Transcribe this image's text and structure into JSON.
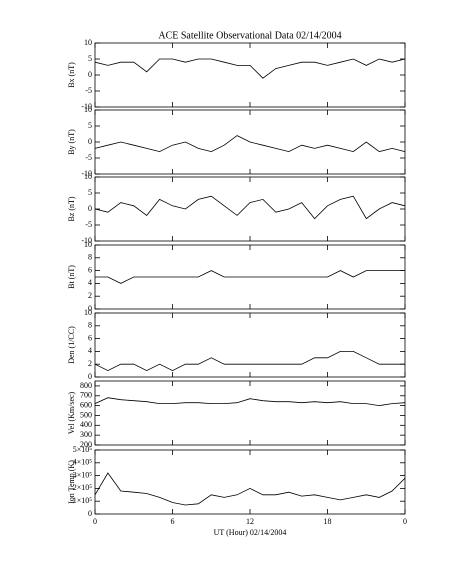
{
  "title": "ACE Satellite Observational Data   02/14/2004",
  "chart_data": [
    {
      "type": "line",
      "ylabel": "Bx (nT)",
      "x": [
        0,
        1,
        2,
        3,
        4,
        5,
        6,
        7,
        8,
        9,
        10,
        11,
        12,
        13,
        14,
        15,
        16,
        17,
        18,
        19,
        20,
        21,
        22,
        23,
        24
      ],
      "values": [
        4,
        3,
        4,
        4,
        1,
        5,
        5,
        4,
        5,
        5,
        4,
        3,
        3,
        -1,
        2,
        3,
        4,
        4,
        3,
        4,
        5,
        3,
        5,
        4,
        5
      ],
      "xlim": [
        0,
        24
      ],
      "xticks": [
        0,
        6,
        12,
        18,
        {
          "value": 24,
          "label": "0"
        }
      ],
      "ylim": [
        -10,
        10
      ],
      "yticks": [
        -10,
        -5,
        0,
        5,
        10
      ],
      "color": "#000000"
    },
    {
      "type": "line",
      "ylabel": "By (nT)",
      "x": [
        0,
        1,
        2,
        3,
        4,
        5,
        6,
        7,
        8,
        9,
        10,
        11,
        12,
        13,
        14,
        15,
        16,
        17,
        18,
        19,
        20,
        21,
        22,
        23,
        24
      ],
      "values": [
        -2,
        -1,
        0,
        -1,
        -2,
        -3,
        -1,
        0,
        -2,
        -3,
        -1,
        2,
        0,
        -1,
        -2,
        -3,
        -1,
        -2,
        -1,
        -2,
        -3,
        0,
        -3,
        -2,
        -3
      ],
      "xlim": [
        0,
        24
      ],
      "xticks": [
        0,
        6,
        12,
        18,
        {
          "value": 24,
          "label": "0"
        }
      ],
      "ylim": [
        -10,
        10
      ],
      "yticks": [
        -10,
        -5,
        0,
        5,
        10
      ],
      "color": "#000000"
    },
    {
      "type": "line",
      "ylabel": "Bz (nT)",
      "x": [
        0,
        1,
        2,
        3,
        4,
        5,
        6,
        7,
        8,
        9,
        10,
        11,
        12,
        13,
        14,
        15,
        16,
        17,
        18,
        19,
        20,
        21,
        22,
        23,
        24
      ],
      "values": [
        0,
        -1,
        2,
        1,
        -2,
        3,
        1,
        0,
        3,
        4,
        1,
        -2,
        2,
        3,
        -1,
        0,
        2,
        -3,
        1,
        3,
        4,
        -3,
        0,
        2,
        1
      ],
      "xlim": [
        0,
        24
      ],
      "xticks": [
        0,
        6,
        12,
        18,
        {
          "value": 24,
          "label": "0"
        }
      ],
      "ylim": [
        -10,
        10
      ],
      "yticks": [
        -10,
        -5,
        0,
        5,
        10
      ],
      "color": "#000000"
    },
    {
      "type": "line",
      "ylabel": "Bt (nT)",
      "x": [
        0,
        1,
        2,
        3,
        4,
        5,
        6,
        7,
        8,
        9,
        10,
        11,
        12,
        13,
        14,
        15,
        16,
        17,
        18,
        19,
        20,
        21,
        22,
        23,
        24
      ],
      "values": [
        5,
        5,
        4,
        5,
        5,
        5,
        5,
        5,
        5,
        6,
        5,
        5,
        5,
        5,
        5,
        5,
        5,
        5,
        5,
        6,
        5,
        6,
        6,
        6,
        6
      ],
      "xlim": [
        0,
        24
      ],
      "xticks": [
        0,
        6,
        12,
        18,
        {
          "value": 24,
          "label": "0"
        }
      ],
      "ylim": [
        0,
        10
      ],
      "yticks": [
        0,
        2,
        4,
        6,
        8,
        10
      ],
      "color": "#000000"
    },
    {
      "type": "line",
      "ylabel": "Den (1/CC)",
      "x": [
        0,
        1,
        2,
        3,
        4,
        5,
        6,
        7,
        8,
        9,
        10,
        11,
        12,
        13,
        14,
        15,
        16,
        17,
        18,
        19,
        20,
        21,
        22,
        23,
        24
      ],
      "values": [
        2,
        1,
        2,
        2,
        1,
        2,
        1,
        2,
        2,
        3,
        2,
        2,
        2,
        2,
        2,
        2,
        2,
        3,
        3,
        4,
        4,
        3,
        2,
        2,
        2
      ],
      "xlim": [
        0,
        24
      ],
      "xticks": [
        0,
        6,
        12,
        18,
        {
          "value": 24,
          "label": "0"
        }
      ],
      "ylim": [
        0,
        10
      ],
      "yticks": [
        0,
        2,
        4,
        6,
        8,
        10
      ],
      "color": "#000000"
    },
    {
      "type": "line",
      "ylabel": "Vel (Km/sec)",
      "x": [
        0,
        1,
        2,
        3,
        4,
        5,
        6,
        7,
        8,
        9,
        10,
        11,
        12,
        13,
        14,
        15,
        16,
        17,
        18,
        19,
        20,
        21,
        22,
        23,
        24
      ],
      "values": [
        620,
        680,
        660,
        650,
        640,
        620,
        620,
        630,
        630,
        620,
        620,
        630,
        670,
        650,
        640,
        640,
        630,
        640,
        630,
        640,
        620,
        620,
        600,
        620,
        630
      ],
      "xlim": [
        0,
        24
      ],
      "xticks": [
        0,
        6,
        12,
        18,
        {
          "value": 24,
          "label": "0"
        }
      ],
      "ylim": [
        200,
        850
      ],
      "yticks": [
        200,
        300,
        400,
        500,
        600,
        700,
        800
      ],
      "color": "#000000"
    },
    {
      "type": "line",
      "ylabel": "Ion Temp (K)",
      "xlabel": "UT (Hour)   02/14/2004",
      "x": [
        0,
        1,
        2,
        3,
        4,
        5,
        6,
        7,
        8,
        9,
        10,
        11,
        12,
        13,
        14,
        15,
        16,
        17,
        18,
        19,
        20,
        21,
        22,
        23,
        24
      ],
      "values": [
        150000,
        320000,
        180000,
        170000,
        160000,
        130000,
        90000,
        70000,
        80000,
        150000,
        130000,
        150000,
        200000,
        150000,
        150000,
        170000,
        140000,
        150000,
        130000,
        110000,
        130000,
        150000,
        130000,
        180000,
        280000
      ],
      "xlim": [
        0,
        24
      ],
      "xticks": [
        0,
        6,
        12,
        18,
        {
          "value": 24,
          "label": "0"
        }
      ],
      "ylim": [
        0,
        500000
      ],
      "yticks": [
        0,
        {
          "value": 100000,
          "label": "1×10⁵"
        },
        {
          "value": 200000,
          "label": "2×10⁵"
        },
        {
          "value": 300000,
          "label": "3×10⁵"
        },
        {
          "value": 400000,
          "label": "4×10⁵"
        },
        {
          "value": 500000,
          "label": "5×10⁵"
        }
      ],
      "color": "#000000"
    }
  ]
}
